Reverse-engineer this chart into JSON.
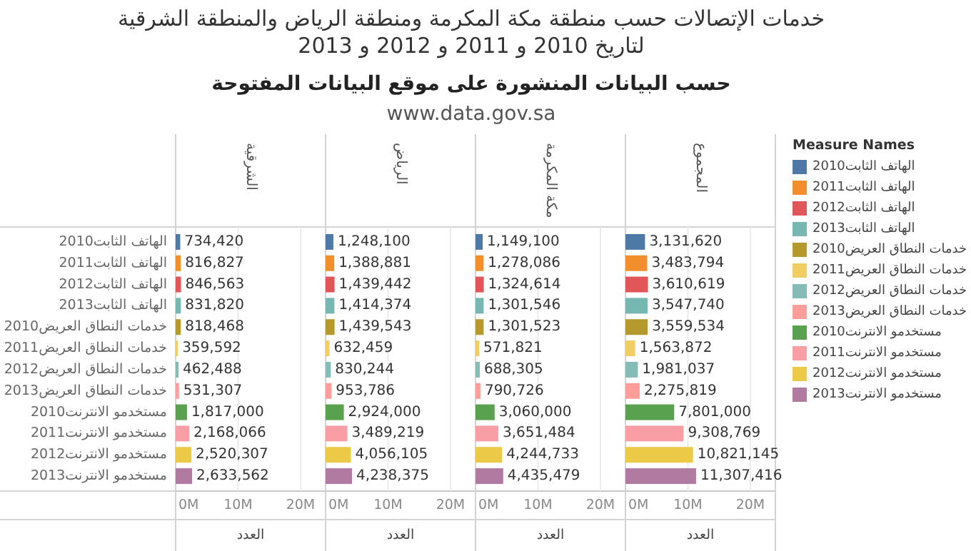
{
  "chart_data": [
    {
      "type": "bar",
      "orientation": "horizontal",
      "title": "الشرقية",
      "xlabel": "العدد",
      "legend_title": "Measure Names",
      "annotations": [
        "خدمات الإتصالات حسب منطقة مكة المكرمة ومنطقة الرياض والمنطقة الشرقية لتاريخ 2010 و 2011 و 2012 و 2013",
        "حسب البيانات المنشورة على موقع البيانات المفتوحة",
        "www.data.gov.sa"
      ],
      "categories": [
        "الهاتف الثابت2010",
        "الهاتف الثابت2011",
        "الهاتف الثابت2012",
        "الهاتف الثابت2013",
        "خدمات النطاق العريض2010",
        "خدمات النطاق العريض2011",
        "خدمات النطاق العريض2012",
        "خدمات النطاق العريض2013",
        "مستخدمو الانترنت2010",
        "مستخدمو الانترنت2011",
        "مستخدمو الانترنت2012",
        "مستخدمو الانترنت2013"
      ],
      "values": [
        734420,
        816827,
        846563,
        831820,
        818468,
        359592,
        462488,
        531307,
        1817000,
        2168066,
        2520307,
        2633562
      ],
      "value_labels": [
        "734,420",
        "816,827",
        "846,563",
        "831,820",
        "818,468",
        "359,592",
        "462,488",
        "531,307",
        "1,817,000",
        "2,168,066",
        "2,520,307",
        "2,633,562"
      ],
      "colors": [
        "#4e79a7",
        "#f28e2b",
        "#e15759",
        "#76b7b2",
        "#b6992d",
        "#f1ce63",
        "#86bcb6",
        "#ff9d9a",
        "#59a14f",
        "#f99ea5",
        "#edc948",
        "#b07aa1"
      ],
      "xlim": [
        0,
        24000000
      ],
      "xticks": [
        {
          "value": 0,
          "label": "0M"
        },
        {
          "value": 10000000,
          "label": "10M"
        },
        {
          "value": 20000000,
          "label": "20M"
        }
      ],
      "grid": "x"
    },
    {
      "type": "bar",
      "orientation": "horizontal",
      "title": "الرياض",
      "xlabel": "العدد",
      "categories": [
        null,
        null,
        null,
        null,
        null,
        null,
        null,
        null,
        null,
        null,
        null,
        null
      ],
      "values": [
        1248100,
        1388881,
        1439442,
        1414374,
        1439543,
        632459,
        830244,
        953786,
        2924000,
        3489219,
        4056105,
        4238375
      ],
      "value_labels": [
        "1,248,100",
        "1,388,881",
        "1,439,442",
        "1,414,374",
        "1,439,543",
        "632,459",
        "830,244",
        "953,786",
        "2,924,000",
        "3,489,219",
        "4,056,105",
        "4,238,375"
      ],
      "colors": [
        "#4e79a7",
        "#f28e2b",
        "#e15759",
        "#76b7b2",
        "#b6992d",
        "#f1ce63",
        "#86bcb6",
        "#ff9d9a",
        "#59a14f",
        "#f99ea5",
        "#edc948",
        "#b07aa1"
      ],
      "xlim": [
        0,
        24000000
      ],
      "xticks": [
        {
          "value": 0,
          "label": "0M"
        },
        {
          "value": 10000000,
          "label": "10M"
        },
        {
          "value": 20000000,
          "label": "20M"
        }
      ],
      "grid": "x",
      "tick_labels": "x"
    },
    {
      "type": "bar",
      "orientation": "horizontal",
      "title": "مكة المكرمة",
      "xlabel": "العدد",
      "categories": [
        null,
        null,
        null,
        null,
        null,
        null,
        null,
        null,
        null,
        null,
        null,
        null
      ],
      "values": [
        1149100,
        1278086,
        1324614,
        1301546,
        1301523,
        571821,
        688305,
        790726,
        3060000,
        3651484,
        4244733,
        4435479
      ],
      "value_labels": [
        "1,149,100",
        "1,278,086",
        "1,324,614",
        "1,301,546",
        "1,301,523",
        "571,821",
        "688,305",
        "790,726",
        "3,060,000",
        "3,651,484",
        "4,244,733",
        "4,435,479"
      ],
      "colors": [
        "#4e79a7",
        "#f28e2b",
        "#e15759",
        "#76b7b2",
        "#b6992d",
        "#f1ce63",
        "#86bcb6",
        "#ff9d9a",
        "#59a14f",
        "#f99ea5",
        "#edc948",
        "#b07aa1"
      ],
      "xlim": [
        0,
        24000000
      ],
      "xticks": [
        {
          "value": 0,
          "label": "0M"
        },
        {
          "value": 10000000,
          "label": "10M"
        },
        {
          "value": 20000000,
          "label": "20M"
        }
      ],
      "grid": "x",
      "tick_labels": "x"
    },
    {
      "type": "bar",
      "orientation": "horizontal",
      "title": "المجموع",
      "xlabel": "العدد",
      "categories": [
        null,
        null,
        null,
        null,
        null,
        null,
        null,
        null,
        null,
        null,
        null,
        null
      ],
      "values": [
        3131620,
        3483794,
        3610619,
        3547740,
        3559534,
        1563872,
        1981037,
        2275819,
        7801000,
        9308769,
        10821145,
        11307416
      ],
      "value_labels": [
        "3,131,620",
        "3,483,794",
        "3,610,619",
        "3,547,740",
        "3,559,534",
        "1,563,872",
        "1,981,037",
        "2,275,819",
        "7,801,000",
        "9,308,769",
        "10,821,145",
        "11,307,416"
      ],
      "colors": [
        "#4e79a7",
        "#f28e2b",
        "#e15759",
        "#76b7b2",
        "#b6992d",
        "#f1ce63",
        "#86bcb6",
        "#ff9d9a",
        "#59a14f",
        "#f99ea5",
        "#edc948",
        "#b07aa1"
      ],
      "xlim": [
        0,
        24000000
      ],
      "xticks": [
        {
          "value": 0,
          "label": "0M"
        },
        {
          "value": 10000000,
          "label": "10M"
        },
        {
          "value": 20000000,
          "label": "20M"
        }
      ],
      "grid": "x",
      "tick_labels": "x"
    }
  ]
}
